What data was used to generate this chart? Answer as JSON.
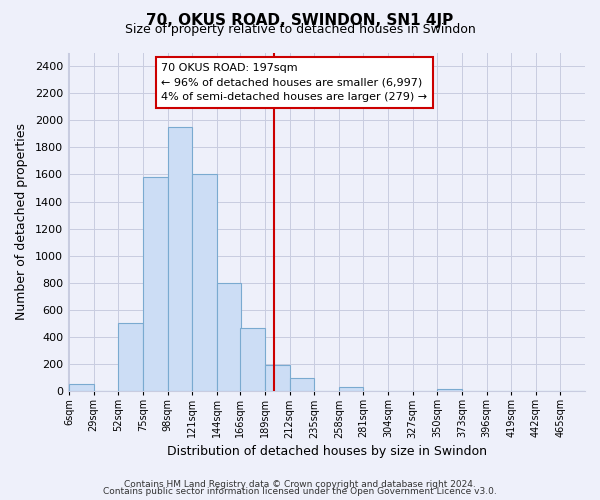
{
  "title": "70, OKUS ROAD, SWINDON, SN1 4JP",
  "subtitle": "Size of property relative to detached houses in Swindon",
  "xlabel": "Distribution of detached houses by size in Swindon",
  "ylabel": "Number of detached properties",
  "bar_color": "#ccddf5",
  "bar_edge_color": "#7aaad0",
  "vline_x": 197,
  "vline_color": "#cc0000",
  "categories": [
    "6sqm",
    "29sqm",
    "52sqm",
    "75sqm",
    "98sqm",
    "121sqm",
    "144sqm",
    "166sqm",
    "189sqm",
    "212sqm",
    "235sqm",
    "258sqm",
    "281sqm",
    "304sqm",
    "327sqm",
    "350sqm",
    "373sqm",
    "396sqm",
    "419sqm",
    "442sqm",
    "465sqm"
  ],
  "bin_edges": [
    6,
    29,
    52,
    75,
    98,
    121,
    144,
    166,
    189,
    212,
    235,
    258,
    281,
    304,
    327,
    350,
    373,
    396,
    419,
    442,
    465
  ],
  "bin_width": 23,
  "values": [
    55,
    0,
    500,
    1580,
    1950,
    1600,
    800,
    470,
    190,
    95,
    0,
    30,
    0,
    0,
    0,
    15,
    0,
    0,
    0,
    0,
    0
  ],
  "ylim": [
    0,
    2500
  ],
  "yticks": [
    0,
    200,
    400,
    600,
    800,
    1000,
    1200,
    1400,
    1600,
    1800,
    2000,
    2200,
    2400
  ],
  "annotation_title": "70 OKUS ROAD: 197sqm",
  "annotation_line1": "← 96% of detached houses are smaller (6,997)",
  "annotation_line2": "4% of semi-detached houses are larger (279) →",
  "footer1": "Contains HM Land Registry data © Crown copyright and database right 2024.",
  "footer2": "Contains public sector information licensed under the Open Government Licence v3.0.",
  "background_color": "#eef0fa",
  "grid_color": "#c8cce0"
}
